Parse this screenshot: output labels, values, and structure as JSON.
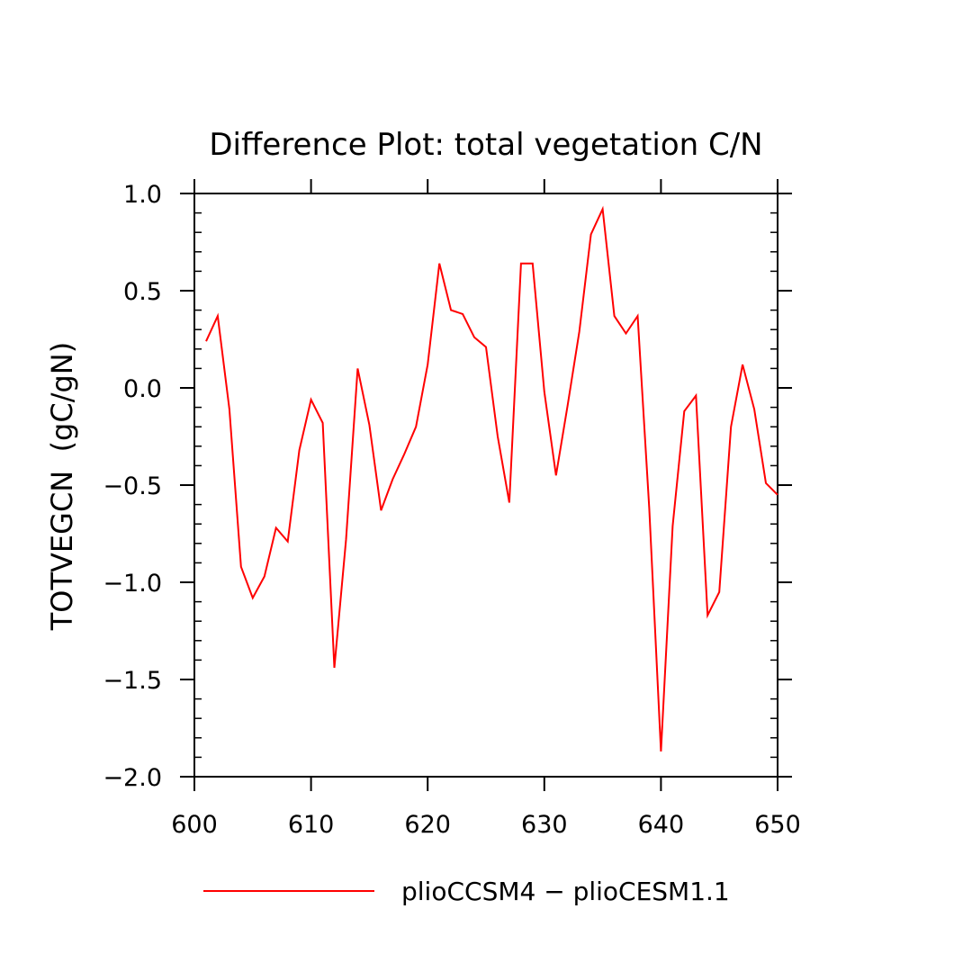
{
  "chart_data": {
    "type": "line",
    "title": "Difference Plot: total vegetation C/N",
    "xlabel": "",
    "ylabel": "TOTVEGCN  (gC/gN)",
    "xlim": [
      600,
      650
    ],
    "ylim": [
      -2.0,
      1.0
    ],
    "x_ticks": [
      "600",
      "610",
      "620",
      "630",
      "640",
      "650"
    ],
    "y_ticks": [
      "1.0",
      "0.5",
      "0.0",
      "−0.5",
      "−1.0",
      "−1.5",
      "−2.0"
    ],
    "grid": false,
    "legend_position": "bottom",
    "series": [
      {
        "name": "plioCCSM4 − plioCESM1.1",
        "color": "#ff0000",
        "x": [
          601,
          602,
          603,
          604,
          605,
          606,
          607,
          608,
          609,
          610,
          611,
          612,
          613,
          614,
          615,
          616,
          617,
          618,
          619,
          620,
          621,
          622,
          623,
          624,
          625,
          626,
          627,
          628,
          629,
          630,
          631,
          632,
          633,
          634,
          635,
          636,
          637,
          638,
          639,
          640,
          641,
          642,
          643,
          644,
          645,
          646,
          647,
          648,
          649,
          650
        ],
        "y": [
          0.24,
          0.37,
          -0.11,
          -0.92,
          -1.08,
          -0.97,
          -0.72,
          -0.79,
          -0.32,
          -0.06,
          -0.18,
          -1.44,
          -0.78,
          0.1,
          -0.19,
          -0.63,
          -0.47,
          -0.34,
          -0.2,
          0.12,
          0.64,
          0.4,
          0.38,
          0.26,
          0.21,
          -0.25,
          -0.59,
          0.64,
          0.64,
          -0.02,
          -0.45,
          -0.09,
          0.29,
          0.79,
          0.92,
          0.37,
          0.28,
          0.37,
          -0.62,
          -1.87,
          -0.71,
          -0.12,
          -0.04,
          -1.17,
          -1.05,
          -0.2,
          0.12,
          -0.11,
          -0.49,
          -0.55
        ]
      }
    ]
  }
}
